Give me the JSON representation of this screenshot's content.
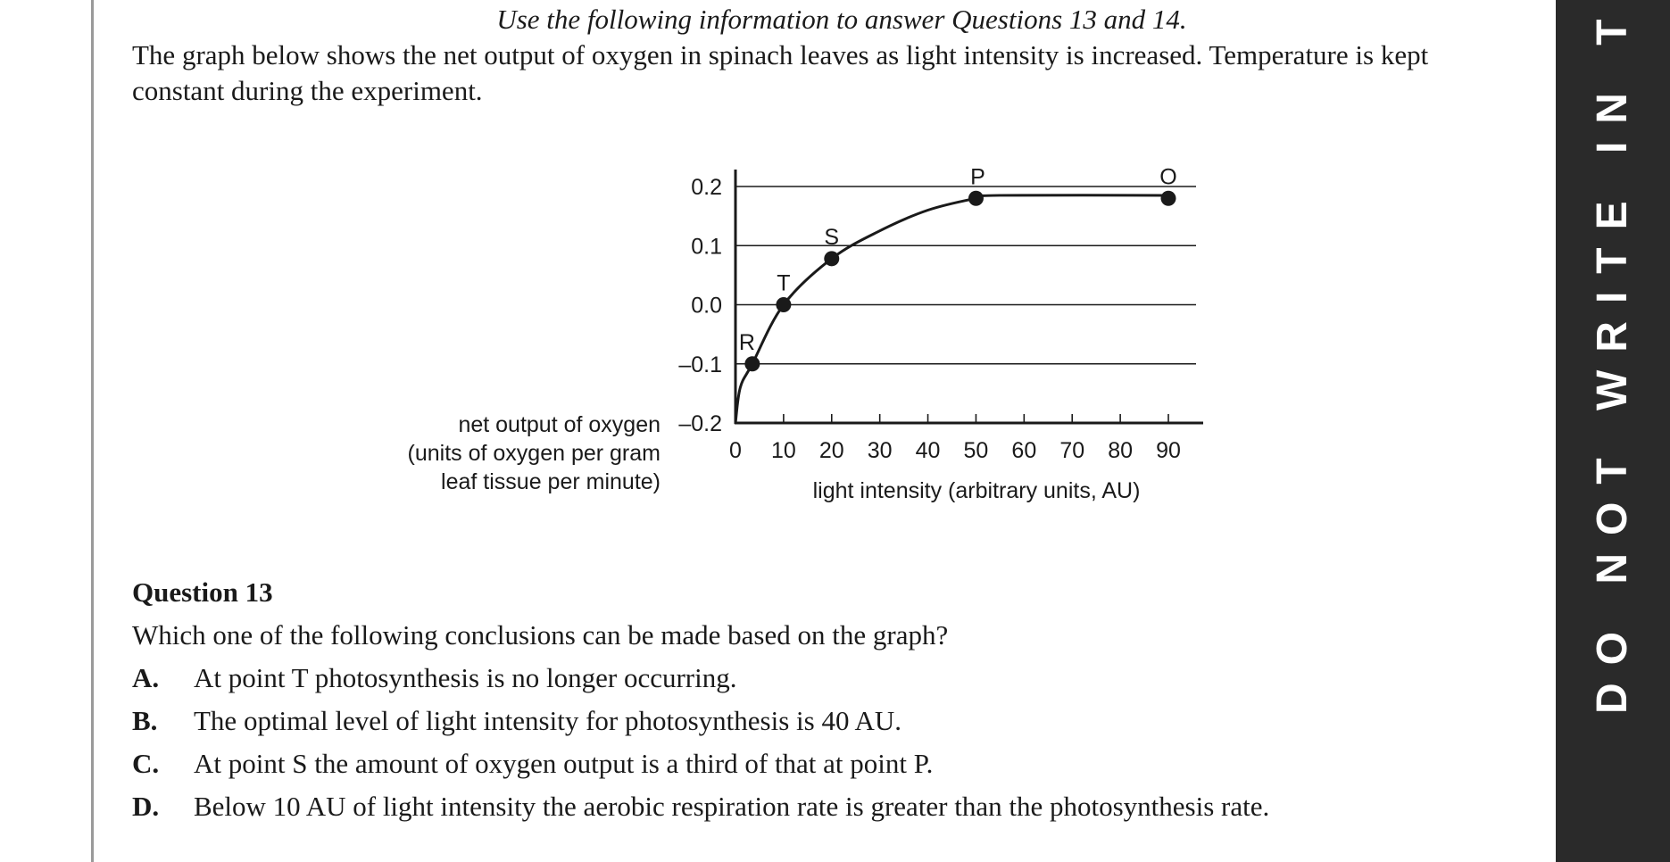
{
  "intro": {
    "instruction": "Use the following information to answer Questions 13 and 14.",
    "description": "The graph below shows the net output of oxygen in spinach leaves as light intensity is increased. Temperature is kept constant during the experiment."
  },
  "chart_data": {
    "type": "line",
    "xlabel": "light intensity (arbitrary units, AU)",
    "ylabel_lines": [
      "net output of oxygen",
      "(units of oxygen per gram",
      "leaf tissue per minute)"
    ],
    "x_ticks": [
      "0",
      "10",
      "20",
      "30",
      "40",
      "50",
      "60",
      "70",
      "80",
      "90"
    ],
    "y_ticks": [
      "0.2",
      "0.1",
      "0.0",
      "–0.1",
      "–0.2"
    ],
    "xlim": [
      0,
      90
    ],
    "ylim": [
      -0.2,
      0.2
    ],
    "grid": "horizontal",
    "curve": [
      {
        "x": 0,
        "y": -0.2
      },
      {
        "x": 1,
        "y": -0.14
      },
      {
        "x": 3.5,
        "y": -0.1
      },
      {
        "x": 10,
        "y": 0.0
      },
      {
        "x": 20,
        "y": 0.078
      },
      {
        "x": 30,
        "y": 0.125
      },
      {
        "x": 40,
        "y": 0.16
      },
      {
        "x": 50,
        "y": 0.18
      },
      {
        "x": 55,
        "y": 0.185
      },
      {
        "x": 90,
        "y": 0.185
      }
    ],
    "points": [
      {
        "label": "R",
        "x": 3.5,
        "y": -0.1
      },
      {
        "label": "T",
        "x": 10,
        "y": 0.0
      },
      {
        "label": "S",
        "x": 20,
        "y": 0.078
      },
      {
        "label": "P",
        "x": 50,
        "y": 0.18
      },
      {
        "label": "O",
        "x": 90,
        "y": 0.18
      }
    ]
  },
  "question": {
    "title": "Question 13",
    "text": "Which one of the following conclusions can be made based on the graph?",
    "options": [
      {
        "letter": "A.",
        "text": "At point T photosynthesis is no longer occurring."
      },
      {
        "letter": "B.",
        "text": "The optimal level of light intensity for photosynthesis is 40 AU."
      },
      {
        "letter": "C.",
        "text": "At point S the amount of oxygen output is a third of that at point P."
      },
      {
        "letter": "D.",
        "text": "Below 10 AU of light intensity the aerobic respiration rate is greater than the photosynthesis rate."
      }
    ]
  },
  "banner": {
    "text": "DO NOT WRITE IN THIS"
  },
  "colors": {
    "banner_bg": "#2a2a2a",
    "banner_text": "#ffffff",
    "ink": "#1a1a1a"
  }
}
